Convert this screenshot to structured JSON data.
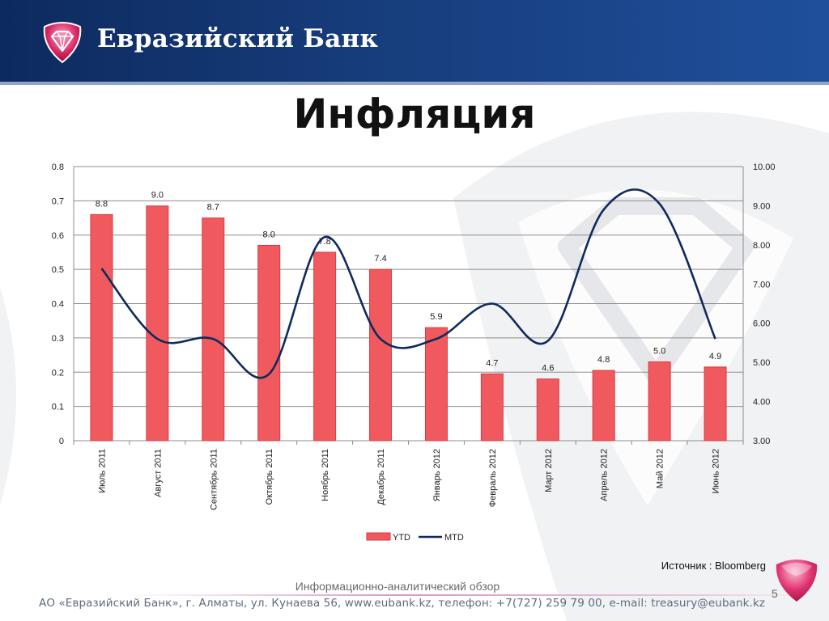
{
  "header": {
    "brand_name": "Евразийский Банк",
    "background": "#143a78",
    "logo": "diamond-logo-icon"
  },
  "title": "Инфляция",
  "source_note": "Источник : Bloomberg",
  "footer": {
    "line1": "Информационно-аналитический обзор",
    "line2": "АО «Евразийский Банк», г. Алматы, ул. Кунаева 56, www.eubank.kz, телефон: +7(727) 259 79 00, e-mail: treasury@eubank.kz",
    "page_number": "5"
  },
  "chart_data": {
    "type": "bar",
    "categories": [
      "Июль 2011",
      "Август 2011",
      "Сентябрь 2011",
      "Октябрь 2011",
      "Ноябрь 2011",
      "Декабрь 2011",
      "Январь 2012",
      "Февраль 2012",
      "Март 2012",
      "Апрель 2012",
      "Май 2012",
      "Июнь 2012"
    ],
    "series": [
      {
        "name": "YTD",
        "type": "bar",
        "axis": "left",
        "color": "#f05a5e",
        "values": [
          0.66,
          0.685,
          0.65,
          0.57,
          0.55,
          0.5,
          0.33,
          0.195,
          0.18,
          0.205,
          0.23,
          0.215
        ]
      },
      {
        "name": "MTD",
        "type": "line",
        "axis": "right",
        "color": "#0e2a5c",
        "values": [
          7.4,
          5.6,
          5.6,
          4.7,
          8.2,
          5.6,
          5.6,
          6.5,
          5.55,
          8.9,
          9.05,
          5.6
        ]
      }
    ],
    "data_labels": [
      "8.8",
      "9.0",
      "8.7",
      "8.0",
      "7.8",
      "7.4",
      "5.9",
      "4.7",
      "4.6",
      "4.8",
      "5.0",
      "4.9"
    ],
    "left_axis": {
      "min": 0,
      "max": 0.8,
      "ticks": [
        "0",
        "0.1",
        "0.2",
        "0.3",
        "0.4",
        "0.5",
        "0.6",
        "0.7",
        "0.8"
      ]
    },
    "right_axis": {
      "min": 3,
      "max": 10,
      "ticks": [
        "3.00",
        "4.00",
        "5.00",
        "6.00",
        "7.00",
        "8.00",
        "9.00",
        "10.00"
      ]
    },
    "grid": true,
    "legend_position": "bottom"
  }
}
